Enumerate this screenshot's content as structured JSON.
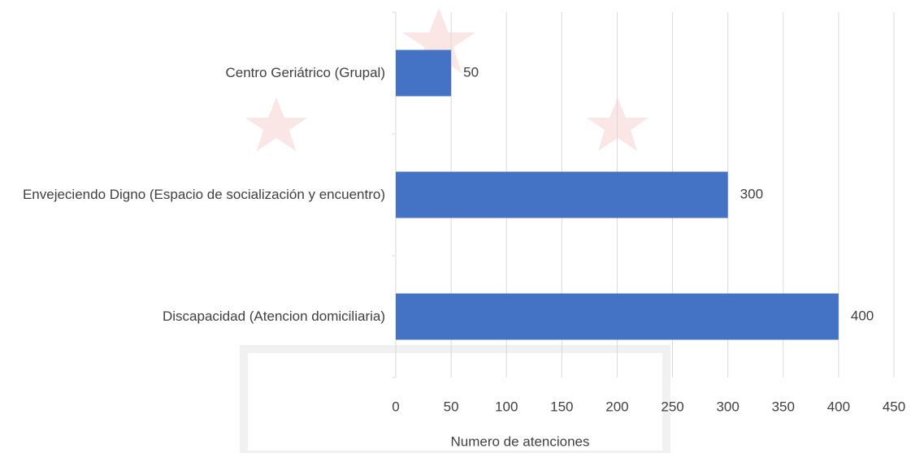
{
  "chart_data": {
    "type": "barh",
    "categories": [
      "Centro Geriátrico (Grupal)",
      "Envejeciendo Digno (Espacio de socialización y encuentro)",
      "Discapacidad (Atencion domiciliaria)"
    ],
    "values": [
      50,
      300,
      400
    ],
    "color": "#4472c4",
    "xlabel": "Numero de atenciones",
    "xlim": [
      0,
      450
    ],
    "xticks": [
      0,
      50,
      100,
      150,
      200,
      250,
      300,
      350,
      400,
      450
    ],
    "grid": true
  }
}
